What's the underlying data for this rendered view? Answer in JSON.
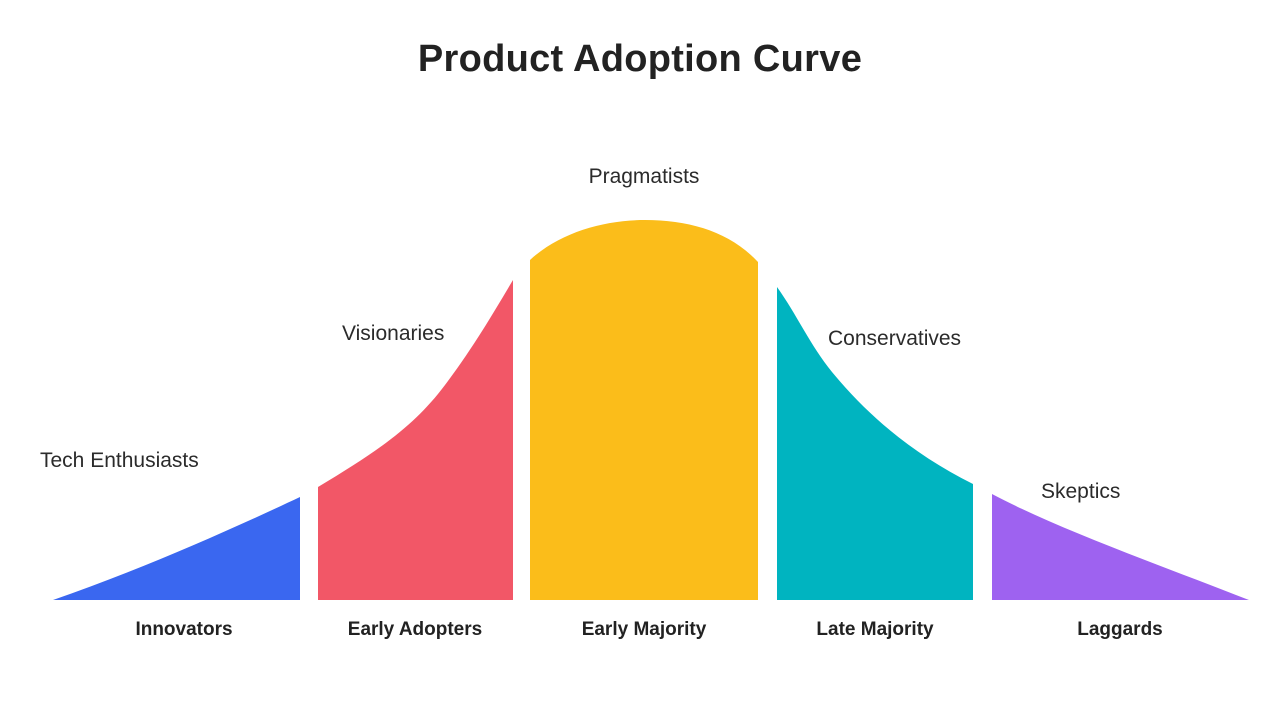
{
  "title": "Product Adoption Curve",
  "segments": [
    {
      "name": "Innovators",
      "persona": "Tech Enthusiasts",
      "color": "#3A67F0"
    },
    {
      "name": "Early Adopters",
      "persona": "Visionaries",
      "color": "#F25767"
    },
    {
      "name": "Early Majority",
      "persona": "Pragmatists",
      "color": "#FBBD1A"
    },
    {
      "name": "Late Majority",
      "persona": "Conservatives",
      "color": "#00B4C0"
    },
    {
      "name": "Laggards",
      "persona": "Skeptics",
      "color": "#9E62F0"
    }
  ]
}
